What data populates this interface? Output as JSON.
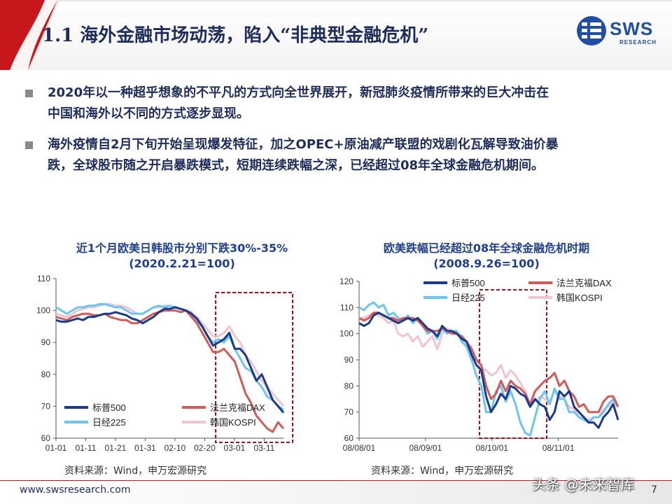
{
  "header": {
    "title": "1.1 海外金融市场动荡，陷入“非典型金融危机”"
  },
  "logo": {
    "name": "SWS",
    "sub": "RESEARCH"
  },
  "bullets": [
    {
      "line1": "2020年以一种超乎想象的不平凡的方式向全世界展开，新冠肺炎疫情所带来的巨大冲击在",
      "line2": "中国和海外以不同的方式逐步显现。"
    },
    {
      "line1": "海外疫情自2月下旬开始呈现爆发特征，加之OPEC+原油减产联盟的戏剧化瓦解导致油价暴",
      "line2": "跌，全球股市随之开启暴跌模式，短期连续跌幅之深，已经超过08年全球金融危机期间。"
    }
  ],
  "chart_data": [
    {
      "type": "line",
      "title": "近1个月欧美日韩股市分别下跌30%-35%",
      "subtitle": "(2020.2.21=100)",
      "x_ticks": [
        "01-01",
        "01-11",
        "01-21",
        "01-31",
        "02-10",
        "02-20",
        "03-01",
        "03-11"
      ],
      "y_ticks": [
        60,
        70,
        80,
        90,
        100,
        110
      ],
      "ylim": [
        60,
        110
      ],
      "grid": false,
      "legend_position": "bottom-inside",
      "highlight_box": {
        "from": "02-20",
        "to": "end"
      },
      "series": [
        {
          "name": "标普500",
          "color": "#1a3a8a",
          "values": [
            97,
            96.5,
            96.5,
            97,
            97.5,
            97,
            98,
            98,
            98.5,
            99,
            99,
            99.5,
            99,
            98.5,
            97.5,
            97,
            96,
            97,
            98,
            99.5,
            100.5,
            100.5,
            101,
            100.5,
            100,
            99,
            97.5,
            95,
            92,
            89,
            90,
            91,
            93,
            88,
            88,
            86,
            82,
            78,
            80,
            76,
            72,
            70,
            68
          ]
        },
        {
          "name": "法兰克福DAX",
          "color": "#d15a5a",
          "values": [
            98,
            97.5,
            97,
            98,
            98.5,
            99,
            99,
            98.5,
            98.5,
            99,
            98,
            97.5,
            97,
            97,
            96,
            96,
            97,
            98,
            99,
            99.5,
            100,
            100,
            100,
            99.5,
            100,
            98,
            96,
            93,
            90,
            87,
            87,
            88,
            86,
            84,
            79,
            74,
            71,
            67,
            65,
            63,
            62,
            65,
            63
          ]
        },
        {
          "name": "日经225",
          "color": "#6cc6ef",
          "values": [
            101,
            100,
            99,
            100,
            101,
            101,
            101.5,
            101.5,
            102,
            102,
            101.5,
            101,
            101,
            100,
            99,
            99,
            99,
            100,
            101,
            101.5,
            101,
            101.5,
            101,
            100.5,
            100,
            99,
            97,
            95,
            92,
            90,
            91,
            90,
            92,
            88,
            85,
            82,
            81,
            78,
            76,
            73,
            72,
            70,
            69
          ]
        },
        {
          "name": "韩国KOSPI",
          "color": "#f2c4cd",
          "values": [
            99,
            98.5,
            98,
            99,
            100,
            100.5,
            101,
            101,
            101.5,
            102,
            102,
            101.5,
            101.5,
            101,
            100,
            99,
            99,
            100,
            101,
            101,
            101.5,
            101.5,
            101,
            100.5,
            100,
            99.5,
            98,
            96,
            94,
            92,
            92,
            93,
            95,
            92,
            90,
            86,
            84,
            81,
            78,
            76,
            74,
            72,
            70
          ]
        }
      ],
      "source": "资料来源：Wind，申万宏源研究"
    },
    {
      "type": "line",
      "title": "欧美跌幅已经超过08年全球金融危机时期",
      "subtitle": "(2008.9.26=100)",
      "x_ticks": [
        "08/08/01",
        "08/09/01",
        "08/10/01",
        "08/11/01"
      ],
      "y_ticks": [
        60,
        70,
        80,
        90,
        100,
        110,
        120
      ],
      "ylim": [
        60,
        120
      ],
      "grid": false,
      "legend_position": "top-inside",
      "highlight_box": {
        "from": "09-26",
        "to": "10-27"
      },
      "series": [
        {
          "name": "标普500",
          "color": "#1a3a8a",
          "values": [
            104,
            103,
            104,
            107,
            108,
            107,
            106,
            105,
            104,
            105,
            106,
            105,
            106,
            104,
            102,
            101,
            99,
            103,
            101,
            101,
            100,
            98,
            97,
            92,
            88,
            86,
            76,
            70,
            73,
            77,
            75,
            80,
            79,
            77,
            76,
            72,
            75,
            73,
            72,
            67,
            70,
            78,
            76,
            78,
            72,
            70,
            68,
            66,
            66,
            64,
            68,
            70,
            73,
            67
          ]
        },
        {
          "name": "法兰克福DAX",
          "color": "#d15a5a",
          "values": [
            106,
            105,
            106,
            108,
            108,
            107,
            106,
            106,
            105,
            106,
            106,
            106,
            105,
            103,
            101,
            101,
            101,
            102,
            101,
            100,
            100,
            99,
            97,
            94,
            90,
            88,
            80,
            75,
            77,
            82,
            78,
            82,
            80,
            79,
            77,
            73,
            78,
            80,
            82,
            83,
            85,
            80,
            82,
            78,
            76,
            72,
            73,
            70,
            70,
            70,
            74,
            76,
            76,
            72
          ]
        },
        {
          "name": "日经225",
          "color": "#6cc6ef",
          "values": [
            110,
            109,
            111,
            112,
            110,
            111,
            107,
            108,
            106,
            105,
            107,
            104,
            106,
            103,
            100,
            101,
            98,
            102,
            100,
            101,
            101,
            97,
            95,
            90,
            84,
            80,
            70,
            70,
            78,
            80,
            74,
            78,
            73,
            66,
            62,
            61,
            68,
            75,
            78,
            73,
            79,
            75,
            75,
            70,
            70,
            68,
            67,
            66,
            68,
            68,
            70,
            73,
            75,
            72
          ]
        },
        {
          "name": "韩国KOSPI",
          "color": "#f2c4cd",
          "values": [
            106,
            106,
            107,
            108,
            107,
            106,
            104,
            105,
            100,
            99,
            100,
            97,
            99,
            95,
            97,
            99,
            94,
            100,
            102,
            101,
            100,
            98,
            96,
            95,
            90,
            87,
            86,
            84,
            85,
            88,
            83,
            86,
            84,
            81,
            78,
            72,
            74,
            76,
            75,
            74,
            78,
            76,
            75,
            72,
            71,
            68,
            68,
            67,
            68,
            68,
            71,
            72,
            74,
            72
          ]
        }
      ],
      "source": "资料来源：Wind，申万宏源研究"
    }
  ],
  "footer": {
    "url": "www.swsresearch.com",
    "page": "7"
  },
  "watermark": "头条 @未来智库",
  "colors": {
    "brand_red": "#c8161d",
    "title_navy": "#1f2d5a",
    "chart_title_blue": "#1f3f8f",
    "box_red": "#a0151b"
  }
}
